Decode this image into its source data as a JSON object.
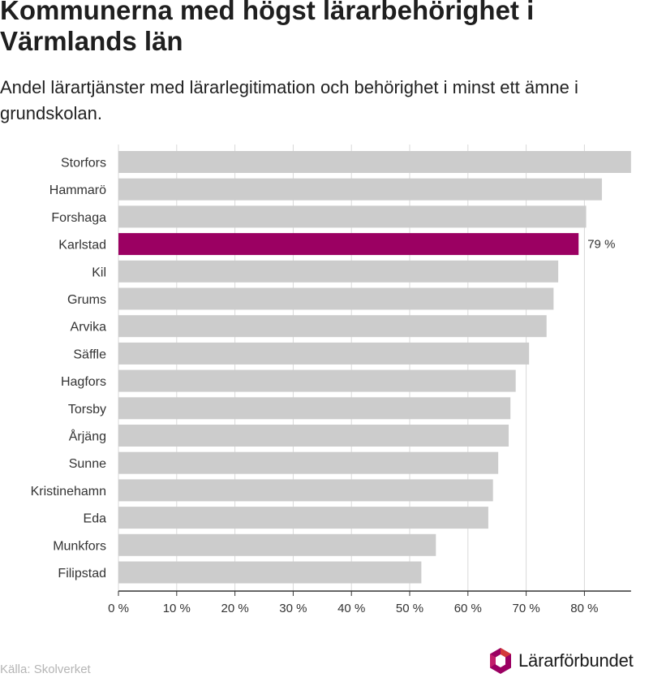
{
  "title": "Kommunerna med högst lärarbehörighet i Värmlands län",
  "subtitle": "Andel lärartjänster med lärarlegitimation och behörighet i minst ett ämne i grundskolan.",
  "source": "Källa: Skolverket",
  "logo": {
    "name": "Lärarförbundet",
    "icon": "lararforbundet-logo-icon"
  },
  "colors": {
    "bar": "#cccccc",
    "highlight": "#9b0062",
    "grid": "#d9d9d9",
    "axis": "#333333"
  },
  "chart_data": {
    "type": "bar",
    "orientation": "horizontal",
    "categories": [
      "Storfors",
      "Hammarö",
      "Forshaga",
      "Karlstad",
      "Kil",
      "Grums",
      "Arvika",
      "Säffle",
      "Hagfors",
      "Torsby",
      "Årjäng",
      "Sunne",
      "Kristinehamn",
      "Eda",
      "Munkfors",
      "Filipstad"
    ],
    "values": [
      88,
      83,
      80.3,
      79,
      75.5,
      74.7,
      73.5,
      70.5,
      68.2,
      67.3,
      67,
      65.2,
      64.3,
      63.5,
      54.5,
      52
    ],
    "highlight": "Karlstad",
    "data_labels": [
      {
        "category": "Karlstad",
        "text": "79 %"
      }
    ],
    "xlim": [
      0,
      88
    ],
    "xticks": [
      0,
      10,
      20,
      30,
      40,
      50,
      60,
      70,
      80
    ],
    "xtick_labels": [
      "0 %",
      "10 %",
      "20 %",
      "30 %",
      "40 %",
      "50 %",
      "60 %",
      "70 %",
      "80 %"
    ],
    "grid": true,
    "xlabel": "",
    "ylabel": ""
  }
}
